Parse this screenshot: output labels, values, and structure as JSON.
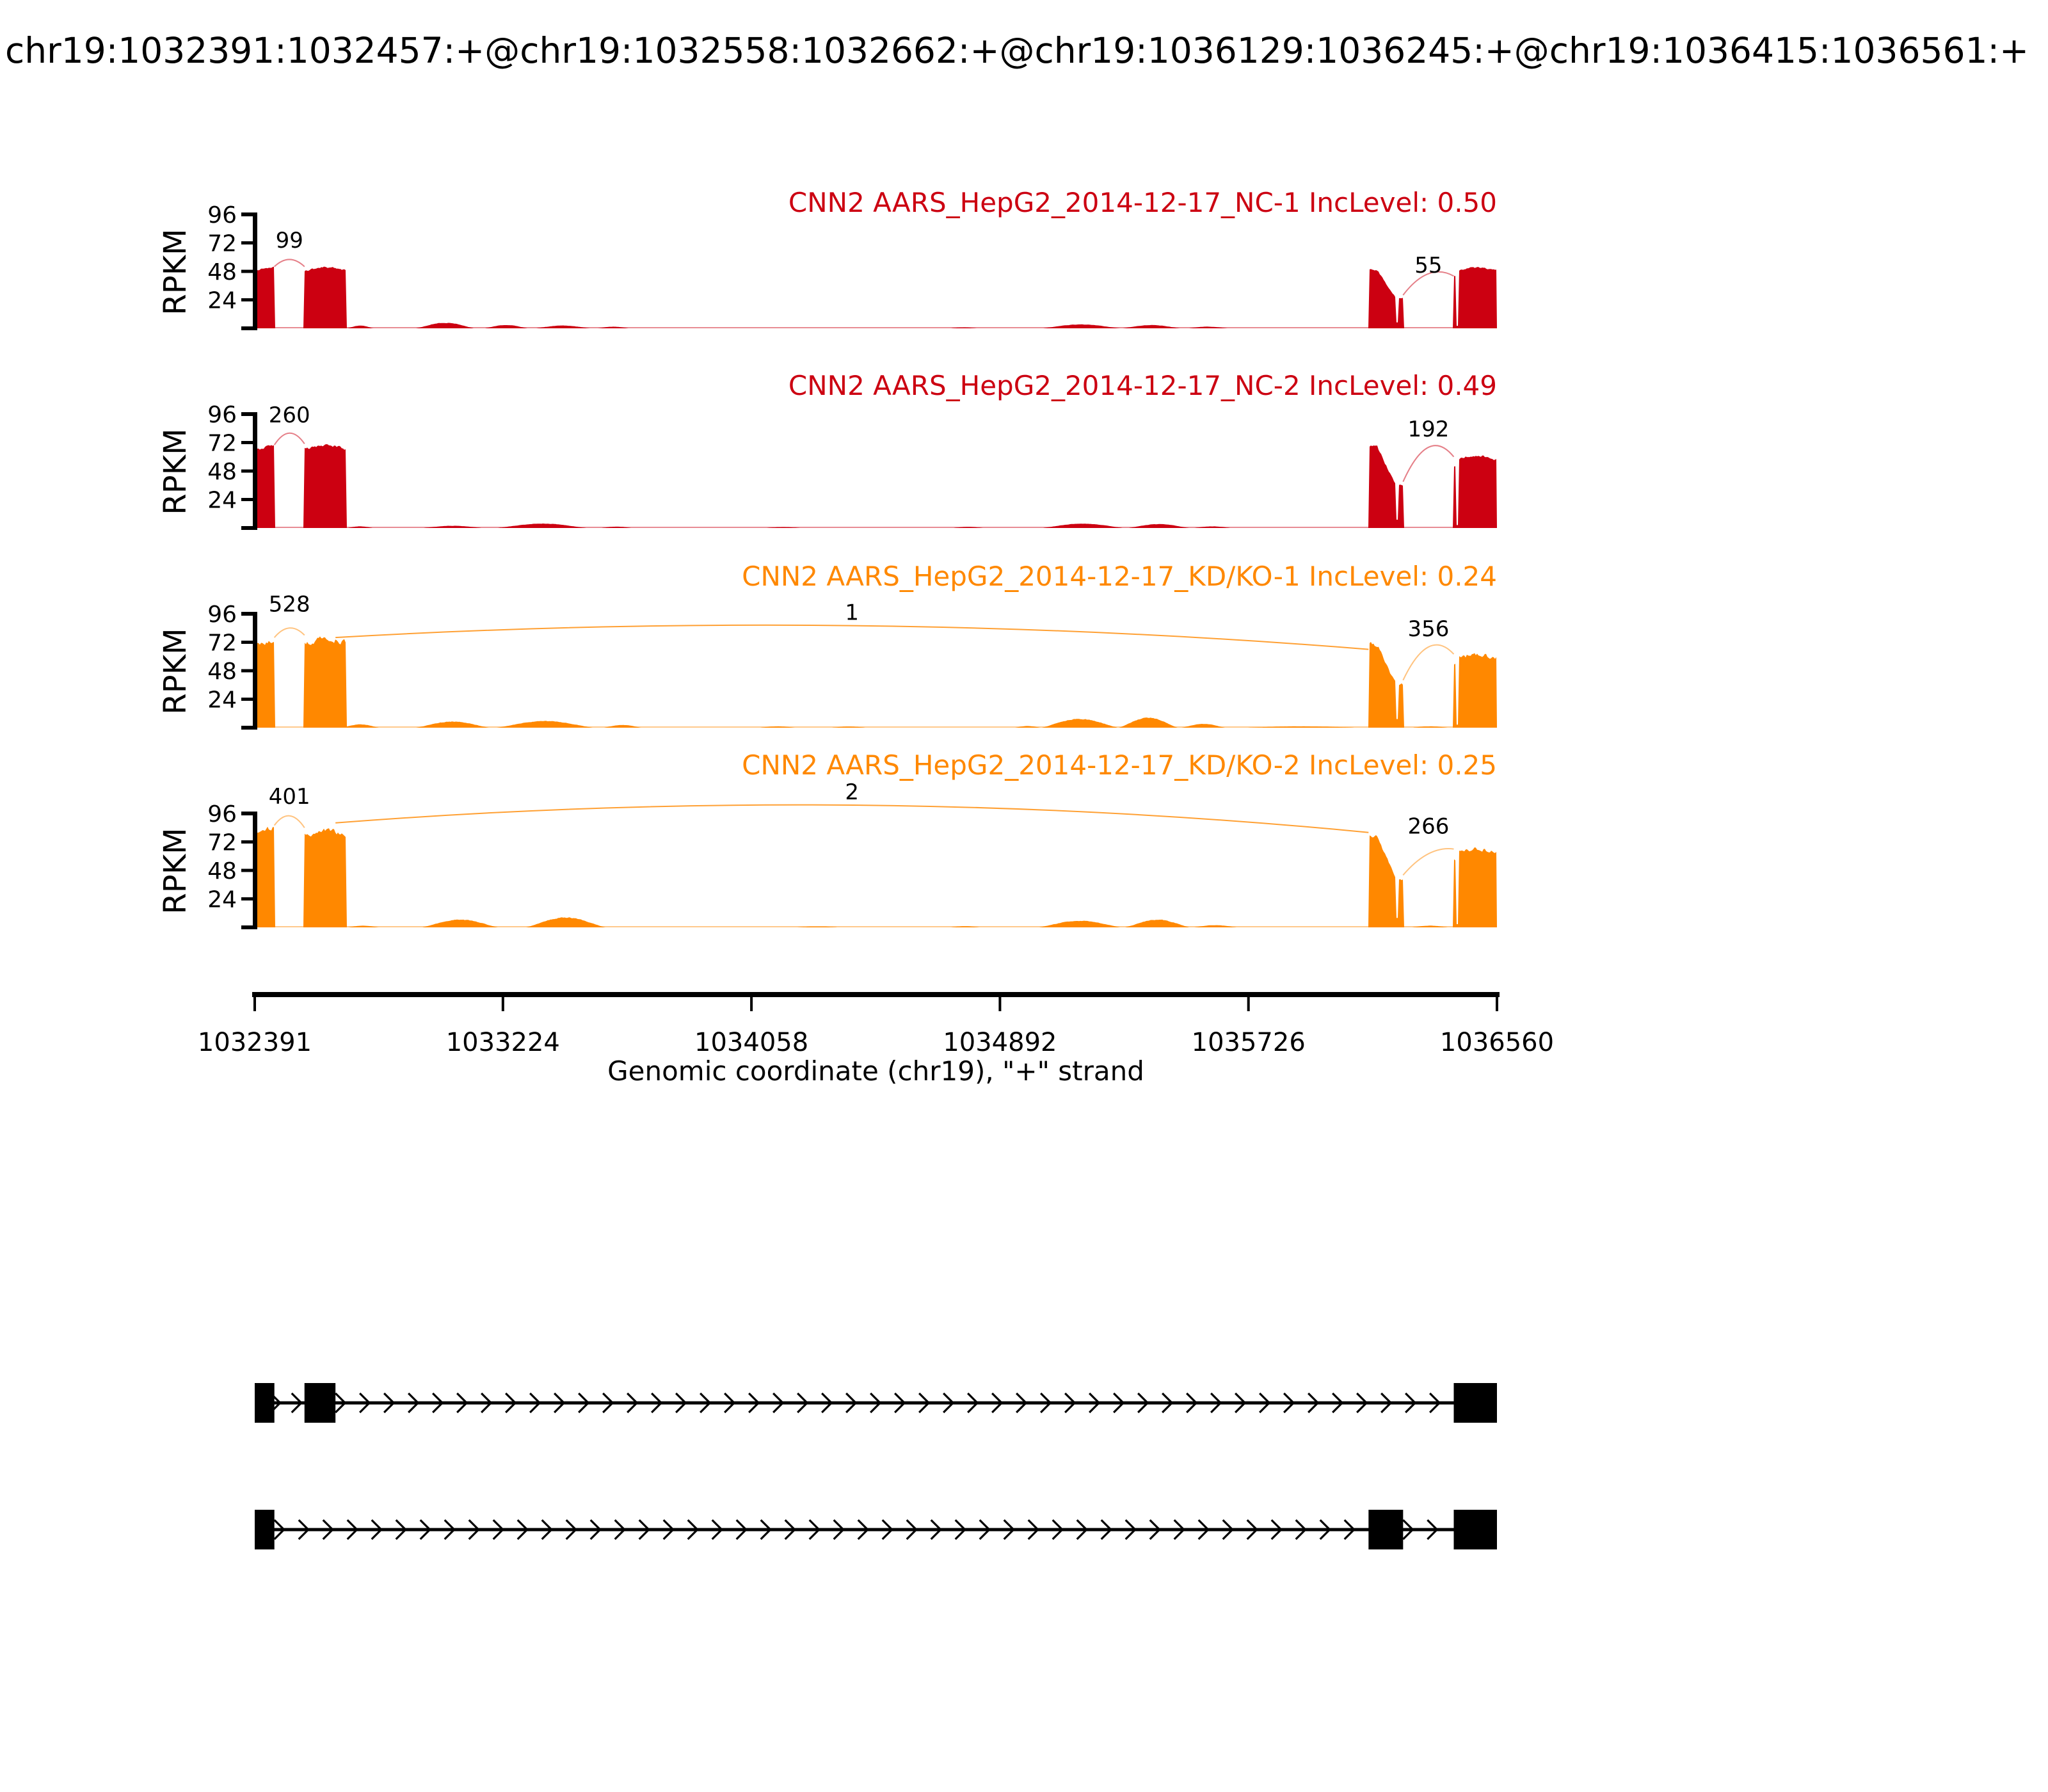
{
  "main_title": "chr19:1032391:1032457:+@chr19:1032558:1032662:+@chr19:1036129:1036245:+@chr19:1036415:1036561:+",
  "y_axis": {
    "label": "RPKM",
    "ticks": [
      96,
      72,
      48,
      24
    ]
  },
  "x_axis": {
    "label": "Genomic coordinate (chr19), \"+\" strand",
    "ticks": [
      1032391,
      1033224,
      1034058,
      1034892,
      1035726,
      1036560
    ],
    "range": [
      1032391,
      1036560
    ]
  },
  "colors": {
    "group1": "#CC0011",
    "group2": "#FF8800",
    "text": "#000000"
  },
  "chart_data": {
    "type": "area",
    "title": "chr19:1032391:1032457:+@chr19:1032558:1032662:+@chr19:1036129:1036245:+@chr19:1036415:1036561:+",
    "xlabel": "Genomic coordinate (chr19), \"+\" strand",
    "ylabel": "RPKM",
    "ylim": [
      0,
      96
    ],
    "event_exons": {
      "upstream": [
        1032391,
        1032457
      ],
      "exon_a": [
        1032558,
        1032662
      ],
      "exon_b": [
        1036129,
        1036245
      ],
      "downstream": [
        1036415,
        1036561
      ]
    },
    "tracks": [
      {
        "title": "CNN2 AARS_HepG2_2014-12-17_NC-1 IncLevel: 0.50",
        "inc_level": 0.5,
        "color": "#CC0011",
        "exons": [
          {
            "start": 1032391,
            "end": 1032457,
            "rpkm": 52,
            "shape": "plain"
          },
          {
            "start": 1032558,
            "end": 1032700,
            "rpkm": 52,
            "shape": "plain"
          },
          {
            "start": 1036129,
            "end": 1036245,
            "rpkm": 50,
            "shape": "taper"
          },
          {
            "start": 1036415,
            "end": 1036560,
            "rpkm": 52,
            "shape": "sliver"
          }
        ],
        "bumps": [
          [
            1032700,
            1032790,
            2.5
          ],
          [
            1032930,
            1033130,
            5
          ],
          [
            1033160,
            1033310,
            3
          ],
          [
            1033330,
            1033520,
            2.5
          ],
          [
            1033540,
            1033650,
            1.5
          ],
          [
            1034720,
            1034820,
            0.8
          ],
          [
            1035030,
            1035300,
            3.5
          ],
          [
            1035300,
            1035500,
            3
          ],
          [
            1035520,
            1035660,
            1.5
          ]
        ],
        "junctions": [
          {
            "from": 1032457,
            "to": 1032558,
            "count": "99",
            "label_rpkm": 68,
            "h1": 52,
            "h2": 52,
            "apex": 58,
            "big": false
          },
          {
            "from": 1036245,
            "to": 1036415,
            "count": "55",
            "label_rpkm": 47,
            "h1": 28,
            "h2": 44,
            "apex": 46,
            "big": false
          }
        ]
      },
      {
        "title": "CNN2 AARS_HepG2_2014-12-17_NC-2 IncLevel: 0.49",
        "inc_level": 0.49,
        "color": "#CC0011",
        "exons": [
          {
            "start": 1032391,
            "end": 1032457,
            "rpkm": 70,
            "shape": "plain"
          },
          {
            "start": 1032558,
            "end": 1032700,
            "rpkm": 71,
            "shape": "plain"
          },
          {
            "start": 1036129,
            "end": 1036245,
            "rpkm": 70,
            "shape": "taper"
          },
          {
            "start": 1036415,
            "end": 1036560,
            "rpkm": 62,
            "shape": "sliver"
          }
        ],
        "bumps": [
          [
            1032700,
            1032790,
            1.5
          ],
          [
            1032950,
            1033160,
            2
          ],
          [
            1033200,
            1033510,
            4
          ],
          [
            1033550,
            1033660,
            1.2
          ],
          [
            1034100,
            1034230,
            0.8
          ],
          [
            1034730,
            1034840,
            1
          ],
          [
            1035030,
            1035310,
            4
          ],
          [
            1035320,
            1035530,
            3.5
          ],
          [
            1035540,
            1035670,
            1.5
          ]
        ],
        "junctions": [
          {
            "from": 1032457,
            "to": 1032558,
            "count": "260",
            "label_rpkm": 89,
            "h1": 70,
            "h2": 71,
            "apex": 80,
            "big": false
          },
          {
            "from": 1036245,
            "to": 1036415,
            "count": "192",
            "label_rpkm": 77,
            "h1": 39,
            "h2": 60,
            "apex": 68,
            "big": false
          }
        ]
      },
      {
        "title": "CNN2 AARS_HepG2_2014-12-17_KD/KO-1 IncLevel: 0.24",
        "inc_level": 0.24,
        "color": "#FF8800",
        "exons": [
          {
            "start": 1032391,
            "end": 1032457,
            "rpkm": 76,
            "shape": "plain"
          },
          {
            "start": 1032558,
            "end": 1032700,
            "rpkm": 78,
            "shape": "plain"
          },
          {
            "start": 1036129,
            "end": 1036245,
            "rpkm": 73,
            "shape": "taper"
          },
          {
            "start": 1036415,
            "end": 1036560,
            "rpkm": 64,
            "shape": "sliver"
          }
        ],
        "bumps": [
          [
            1032680,
            1032810,
            3
          ],
          [
            1032930,
            1033180,
            5.5
          ],
          [
            1033200,
            1033530,
            6
          ],
          [
            1033560,
            1033690,
            2.5
          ],
          [
            1034080,
            1034210,
            1.2
          ],
          [
            1034320,
            1034450,
            1
          ],
          [
            1034940,
            1035030,
            1.5
          ],
          [
            1035030,
            1035290,
            8
          ],
          [
            1035290,
            1035490,
            9
          ],
          [
            1035500,
            1035650,
            3.5
          ],
          [
            1035700,
            1036110,
            1.2
          ],
          [
            1036270,
            1036400,
            1.2
          ]
        ],
        "junctions": [
          {
            "from": 1032457,
            "to": 1032558,
            "count": "528",
            "label_rpkm": 98,
            "h1": 76,
            "h2": 78,
            "apex": 84,
            "big": false
          },
          {
            "from": 1032662,
            "to": 1036129,
            "count": "1",
            "label_rpkm": 91,
            "h1": 76,
            "h2": 66,
            "apex": 86,
            "big": true
          },
          {
            "from": 1036245,
            "to": 1036415,
            "count": "356",
            "label_rpkm": 77,
            "h1": 40,
            "h2": 62,
            "apex": 68,
            "big": false
          }
        ]
      },
      {
        "title": "CNN2 AARS_HepG2_2014-12-17_KD/KO-2 IncLevel: 0.25",
        "inc_level": 0.25,
        "color": "#FF8800",
        "exons": [
          {
            "start": 1032391,
            "end": 1032457,
            "rpkm": 86,
            "shape": "plain"
          },
          {
            "start": 1032558,
            "end": 1032700,
            "rpkm": 84,
            "shape": "plain"
          },
          {
            "start": 1036129,
            "end": 1036245,
            "rpkm": 80,
            "shape": "taper"
          },
          {
            "start": 1036415,
            "end": 1036560,
            "rpkm": 68,
            "shape": "sliver"
          }
        ],
        "bumps": [
          [
            1032700,
            1032810,
            1.5
          ],
          [
            1032950,
            1033210,
            7
          ],
          [
            1033300,
            1033570,
            9
          ],
          [
            1034200,
            1034360,
            0.8
          ],
          [
            1034720,
            1034830,
            1
          ],
          [
            1035020,
            1035300,
            6
          ],
          [
            1035310,
            1035530,
            7
          ],
          [
            1035540,
            1035690,
            2
          ],
          [
            1036270,
            1036400,
            1.5
          ]
        ],
        "junctions": [
          {
            "from": 1032457,
            "to": 1032558,
            "count": "401",
            "label_rpkm": 104,
            "h1": 86,
            "h2": 84,
            "apex": 94,
            "big": false
          },
          {
            "from": 1032662,
            "to": 1036129,
            "count": "2",
            "label_rpkm": 108,
            "h1": 88,
            "h2": 80,
            "apex": 103,
            "big": true
          },
          {
            "from": 1036245,
            "to": 1036415,
            "count": "266",
            "label_rpkm": 79,
            "h1": 44,
            "h2": 66,
            "apex": 62,
            "big": false
          }
        ]
      }
    ],
    "transcripts": [
      {
        "exons": [
          [
            1032391,
            1032457
          ],
          [
            1032558,
            1032662
          ],
          [
            1036415,
            1036561
          ]
        ]
      },
      {
        "exons": [
          [
            1032391,
            1032457
          ],
          [
            1036129,
            1036245
          ],
          [
            1036415,
            1036561
          ]
        ]
      }
    ]
  }
}
